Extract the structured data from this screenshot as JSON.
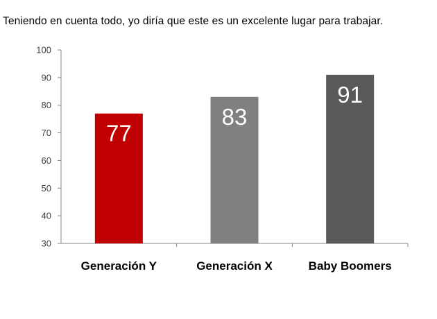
{
  "chart_data": {
    "type": "bar",
    "title": "Teniendo en cuenta todo, yo diría que este es un excelente lugar para trabajar.",
    "categories": [
      "Generación Y",
      "Generación X",
      "Baby Boomers"
    ],
    "values": [
      77,
      83,
      91
    ],
    "data_labels": [
      "77",
      "83",
      "91"
    ],
    "colors": [
      "#c00000",
      "#808080",
      "#595959"
    ],
    "label_color": "#ffffff",
    "ylim": [
      30,
      100
    ],
    "yticks": [
      30,
      40,
      50,
      60,
      70,
      80,
      90,
      100
    ],
    "ytick_labels": [
      "30",
      "40",
      "50",
      "60",
      "70",
      "80",
      "90",
      "100"
    ],
    "grid": false,
    "legend": "none"
  }
}
